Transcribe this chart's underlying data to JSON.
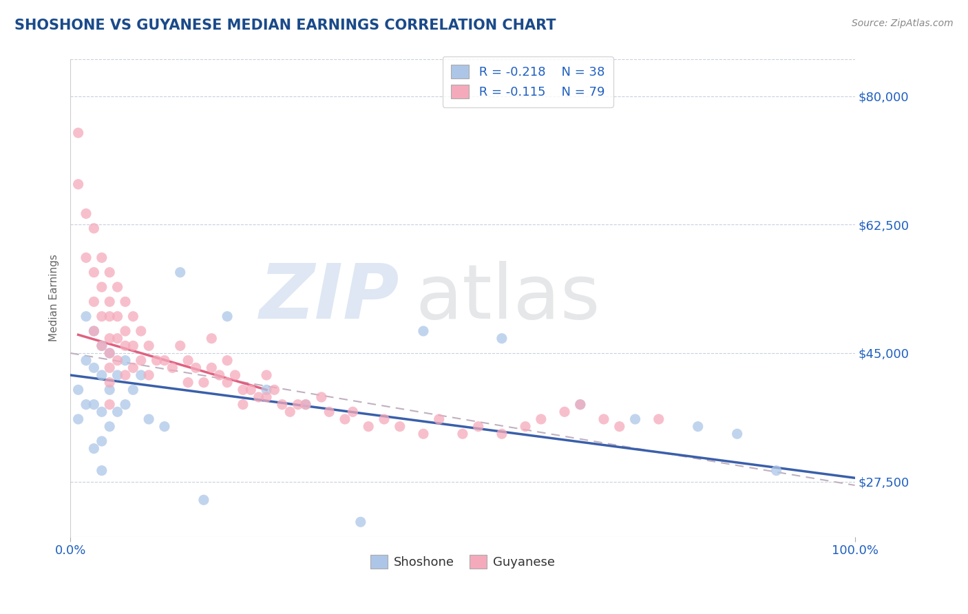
{
  "title": "SHOSHONE VS GUYANESE MEDIAN EARNINGS CORRELATION CHART",
  "source": "Source: ZipAtlas.com",
  "ylabel": "Median Earnings",
  "xlim": [
    0,
    100
  ],
  "ylim": [
    20000,
    85000
  ],
  "yticks": [
    27500,
    45000,
    62500,
    80000
  ],
  "ytick_labels": [
    "$27,500",
    "$45,000",
    "$62,500",
    "$80,000"
  ],
  "xtick_labels": [
    "0.0%",
    "100.0%"
  ],
  "legend_r1": "R = -0.218",
  "legend_n1": "N = 38",
  "legend_r2": "R = -0.115",
  "legend_n2": "N = 79",
  "shoshone_color": "#adc6e8",
  "guyanese_color": "#f5aabb",
  "shoshone_line_color": "#3a5faa",
  "guyanese_line_color": "#e06080",
  "dashed_line_color": "#c0b0c0",
  "title_color": "#1a4a8a",
  "axis_label_color": "#666666",
  "tick_label_color": "#2060c0",
  "background_color": "#ffffff",
  "grid_color": "#c8d0dc",
  "shoshone_x": [
    1,
    1,
    2,
    2,
    2,
    3,
    3,
    3,
    3,
    4,
    4,
    4,
    4,
    4,
    5,
    5,
    5,
    6,
    6,
    7,
    7,
    8,
    9,
    10,
    12,
    14,
    17,
    20,
    25,
    30,
    37,
    45,
    55,
    65,
    72,
    80,
    85,
    90
  ],
  "shoshone_y": [
    40000,
    36000,
    50000,
    44000,
    38000,
    48000,
    43000,
    38000,
    32000,
    46000,
    42000,
    37000,
    33000,
    29000,
    45000,
    40000,
    35000,
    42000,
    37000,
    44000,
    38000,
    40000,
    42000,
    36000,
    35000,
    56000,
    25000,
    50000,
    40000,
    38000,
    22000,
    48000,
    47000,
    38000,
    36000,
    35000,
    34000,
    29000
  ],
  "guyanese_x": [
    1,
    1,
    2,
    2,
    3,
    3,
    3,
    3,
    4,
    4,
    4,
    4,
    5,
    5,
    5,
    5,
    5,
    5,
    5,
    5,
    6,
    6,
    6,
    6,
    7,
    7,
    7,
    7,
    8,
    8,
    8,
    9,
    9,
    10,
    10,
    11,
    12,
    13,
    14,
    15,
    15,
    16,
    17,
    18,
    18,
    19,
    20,
    20,
    21,
    22,
    22,
    23,
    24,
    25,
    25,
    26,
    27,
    28,
    29,
    30,
    32,
    33,
    35,
    36,
    38,
    40,
    42,
    45,
    47,
    50,
    52,
    55,
    58,
    60,
    63,
    65,
    68,
    70,
    75
  ],
  "guyanese_y": [
    75000,
    68000,
    64000,
    58000,
    62000,
    56000,
    52000,
    48000,
    58000,
    54000,
    50000,
    46000,
    56000,
    52000,
    50000,
    47000,
    45000,
    43000,
    41000,
    38000,
    54000,
    50000,
    47000,
    44000,
    52000,
    48000,
    46000,
    42000,
    50000,
    46000,
    43000,
    48000,
    44000,
    46000,
    42000,
    44000,
    44000,
    43000,
    46000,
    44000,
    41000,
    43000,
    41000,
    47000,
    43000,
    42000,
    44000,
    41000,
    42000,
    40000,
    38000,
    40000,
    39000,
    42000,
    39000,
    40000,
    38000,
    37000,
    38000,
    38000,
    39000,
    37000,
    36000,
    37000,
    35000,
    36000,
    35000,
    34000,
    36000,
    34000,
    35000,
    34000,
    35000,
    36000,
    37000,
    38000,
    36000,
    35000,
    36000
  ],
  "shoshone_trend": [
    42000,
    28000
  ],
  "guyanese_trend_x": [
    1,
    25
  ],
  "guyanese_trend_y": [
    47500,
    40000
  ],
  "dashed_trend": [
    45000,
    27000
  ]
}
